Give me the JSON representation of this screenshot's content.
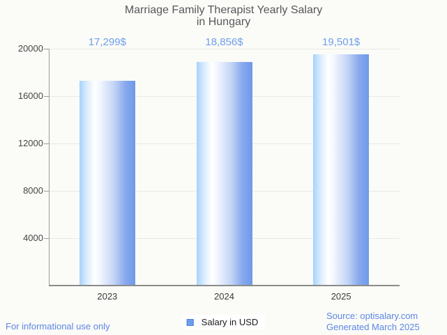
{
  "page": {
    "background": "#fbfbf8",
    "accent_blue": "#6d9eeb",
    "link_blue": "#5c87e4"
  },
  "header": {
    "title_line1": "Marriage Family Therapist Yearly Salary",
    "title_line2": "in Hungary"
  },
  "chart_data": {
    "type": "bar",
    "title": "Marriage Family Therapist Yearly Salary in Hungary",
    "categories": [
      "2023",
      "2024",
      "2025"
    ],
    "series": [
      {
        "name": "Salary in USD",
        "values": [
          17299,
          18856,
          19501
        ]
      }
    ],
    "value_labels": [
      "17,299$",
      "18,856$",
      "19,501$"
    ],
    "xlabel": "",
    "ylabel": "",
    "ylim": [
      0,
      20000
    ],
    "yticks": [
      4000,
      8000,
      12000,
      16000,
      20000
    ],
    "grid": true,
    "legend_position": "bottom",
    "bar_gradient": [
      "#a6d2fa",
      "#ffffff",
      "#6e99ea"
    ],
    "value_label_color": "#6d9eeb"
  },
  "legend": {
    "marker_color": "#6d9eeb",
    "label": "Salary in USD"
  },
  "footer": {
    "left_note": "For informational use only",
    "source_line1": "Source: optisalary.com",
    "source_line2": "Generated March 2025"
  }
}
